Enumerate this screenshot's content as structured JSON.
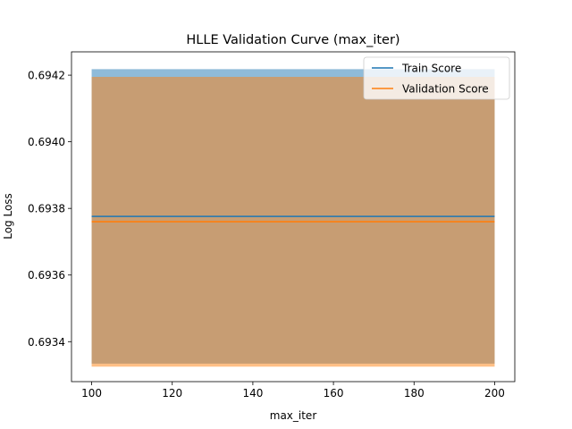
{
  "chart_data": {
    "type": "line",
    "title": "HLLE Validation Curve (max_iter)",
    "xlabel": "max_iter",
    "ylabel": "Log Loss",
    "xlim": [
      95,
      205
    ],
    "ylim": [
      0.69328,
      0.69427
    ],
    "xticks": [
      100,
      120,
      140,
      160,
      180,
      200
    ],
    "yticks": [
      0.6934,
      0.6936,
      0.6938,
      0.694,
      0.6942
    ],
    "ytick_labels": [
      "0.6934",
      "0.6936",
      "0.6938",
      "0.6940",
      "0.6942"
    ],
    "grid": false,
    "legend_position": "top-right",
    "x": [
      100,
      200
    ],
    "series": [
      {
        "name": "Train Score",
        "color": "#1f77b4",
        "band_color": "#1f77b4",
        "values": [
          0.693776,
          0.693776
        ],
        "band_low": [
          0.693334,
          0.693334
        ],
        "band_high": [
          0.694218,
          0.694218
        ]
      },
      {
        "name": "Validation Score",
        "color": "#ff7f0e",
        "band_color": "#ff7f0e",
        "values": [
          0.69376,
          0.69376
        ],
        "band_low": [
          0.693325,
          0.693325
        ],
        "band_high": [
          0.694195,
          0.694195
        ]
      }
    ]
  }
}
